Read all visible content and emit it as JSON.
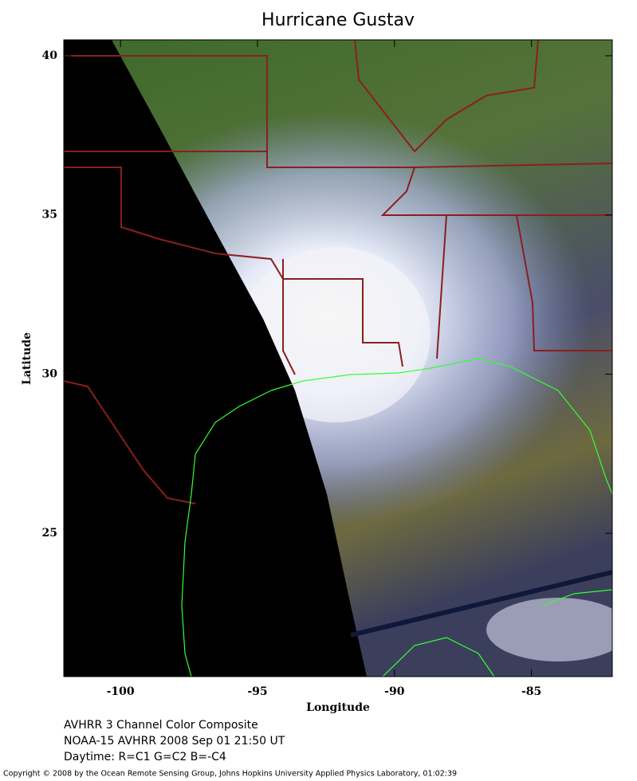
{
  "chart_data": {
    "type": "map",
    "title": "Hurricane Gustav",
    "xlabel": "Longitude",
    "ylabel": "Latitude",
    "xlim": [
      -102.07,
      -82.05
    ],
    "ylim": [
      20.5,
      40.5
    ],
    "xticks": [
      -100,
      -95,
      -90,
      -85
    ],
    "yticks": [
      25,
      30,
      35,
      40
    ],
    "caption": [
      "AVHRR 3 Channel Color Composite",
      "NOAA-15 AVHRR 2008 Sep 01 21:50 UT",
      "Daytime: R=C1 G=C2 B=-C4"
    ],
    "copyright": "Copyright © 2008 by the Ocean Remote Sensing Group, Johns Hopkins University Applied Physics Laboratory, 01:02:39"
  }
}
